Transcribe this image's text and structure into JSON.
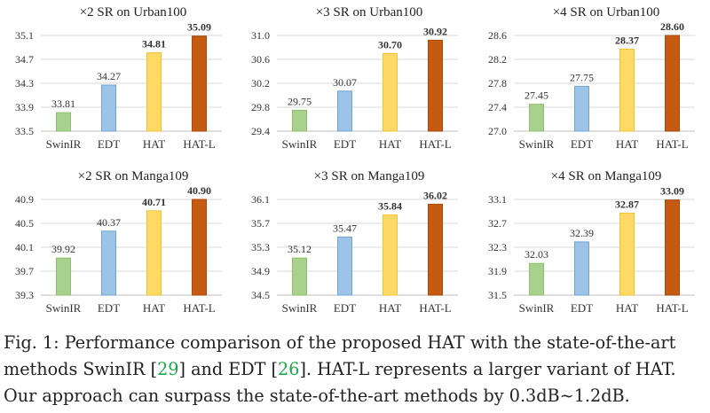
{
  "chart_data": [
    {
      "type": "bar",
      "title": "×2 SR on Urban100",
      "categories": [
        "SwinIR",
        "EDT",
        "HAT",
        "HAT-L"
      ],
      "values": [
        33.81,
        34.27,
        34.81,
        35.09
      ],
      "value_labels": [
        "33.81",
        "34.27",
        "34.81",
        "35.09"
      ],
      "ylim": [
        33.5,
        35.1
      ],
      "yticks": [
        "33.5",
        "33.9",
        "34.3",
        "34.7",
        "35.1"
      ],
      "grid": true
    },
    {
      "type": "bar",
      "title": "×3 SR on Urban100",
      "categories": [
        "SwinIR",
        "EDT",
        "HAT",
        "HAT-L"
      ],
      "values": [
        29.75,
        30.07,
        30.7,
        30.92
      ],
      "value_labels": [
        "29.75",
        "30.07",
        "30.70",
        "30.92"
      ],
      "ylim": [
        29.4,
        31.0
      ],
      "yticks": [
        "29.4",
        "29.8",
        "30.2",
        "30.6",
        "31.0"
      ],
      "grid": true
    },
    {
      "type": "bar",
      "title": "×4 SR on Urban100",
      "categories": [
        "SwinIR",
        "EDT",
        "HAT",
        "HAT-L"
      ],
      "values": [
        27.45,
        27.75,
        28.37,
        28.6
      ],
      "value_labels": [
        "27.45",
        "27.75",
        "28.37",
        "28.60"
      ],
      "ylim": [
        27.0,
        28.6
      ],
      "yticks": [
        "27.0",
        "27.4",
        "27.8",
        "28.2",
        "28.6"
      ],
      "grid": true
    },
    {
      "type": "bar",
      "title": "×2 SR on Manga109",
      "categories": [
        "SwinIR",
        "EDT",
        "HAT",
        "HAT-L"
      ],
      "values": [
        39.92,
        40.37,
        40.71,
        40.9
      ],
      "value_labels": [
        "39.92",
        "40.37",
        "40.71",
        "40.90"
      ],
      "ylim": [
        39.3,
        40.9
      ],
      "yticks": [
        "39.3",
        "39.7",
        "40.1",
        "40.5",
        "40.9"
      ],
      "grid": true
    },
    {
      "type": "bar",
      "title": "×3 SR on Manga109",
      "categories": [
        "SwinIR",
        "EDT",
        "HAT",
        "HAT-L"
      ],
      "values": [
        35.12,
        35.47,
        35.84,
        36.02
      ],
      "value_labels": [
        "35.12",
        "35.47",
        "35.84",
        "36.02"
      ],
      "ylim": [
        34.5,
        36.1
      ],
      "yticks": [
        "34.5",
        "34.9",
        "35.3",
        "35.7",
        "36.1"
      ],
      "grid": true
    },
    {
      "type": "bar",
      "title": "×4 SR on Manga109",
      "categories": [
        "SwinIR",
        "EDT",
        "HAT",
        "HAT-L"
      ],
      "values": [
        32.03,
        32.39,
        32.87,
        33.09
      ],
      "value_labels": [
        "32.03",
        "32.39",
        "32.87",
        "33.09"
      ],
      "ylim": [
        31.5,
        33.1
      ],
      "yticks": [
        "31.5",
        "31.9",
        "32.3",
        "32.7",
        "33.1"
      ],
      "grid": true
    }
  ],
  "colors": {
    "bar_fills": [
      "#a9d18e",
      "#9dc3e6",
      "#ffd966",
      "#c55a11"
    ],
    "bar_strokes": [
      "#8cbf6c",
      "#6fa5d6",
      "#f2c233",
      "#a84a0c"
    ],
    "grid": "#d9d9d9",
    "axis": "#bfbfbf",
    "cite": "#17a84a"
  },
  "bold_series": [
    "HAT",
    "HAT-L"
  ],
  "caption": {
    "label": "Fig. 1:",
    "text_1": " Performance comparison of the proposed HAT with the state-of-the-art methods SwinIR [",
    "cite_1": "29",
    "text_2": "] and EDT [",
    "cite_2": "26",
    "text_3": "]. HAT-L represents a larger variant of HAT. Our approach can surpass the state-of-the-art methods by 0.3dB∼1.2dB."
  }
}
